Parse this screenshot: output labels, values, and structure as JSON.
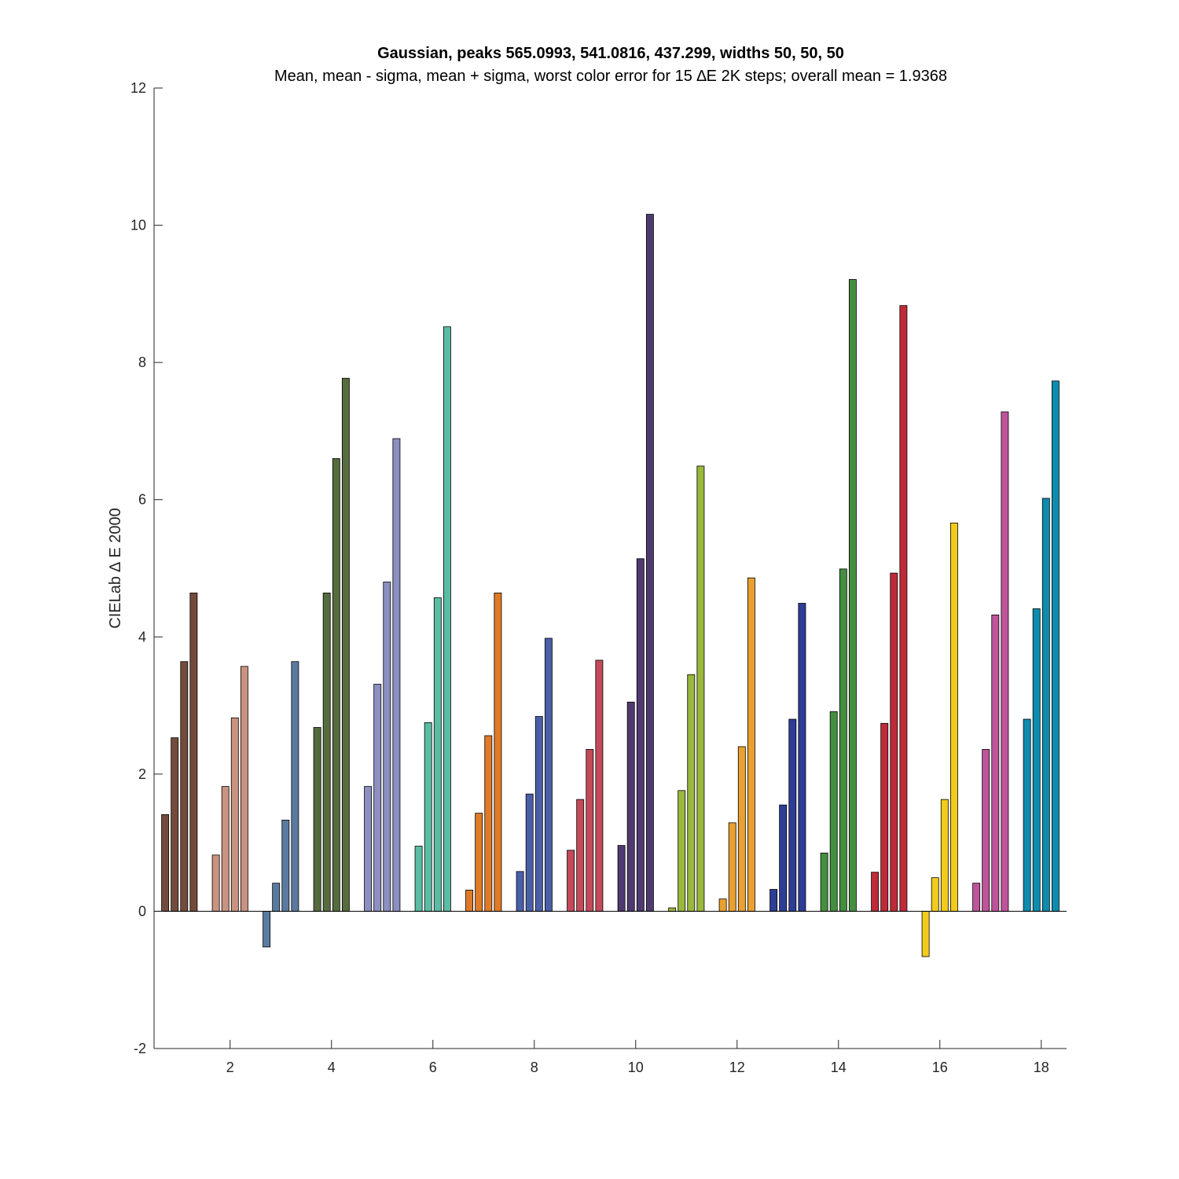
{
  "chart_data": {
    "type": "bar",
    "title": "Gaussian, peaks 565.0993, 541.0816, 437.299, widths 50, 50, 50",
    "subtitle": "Mean, mean - sigma, mean + sigma, worst color error for 15 ∆E 2K steps; overall mean = 1.9368",
    "xlabel": "",
    "ylabel": "CIELab ∆ E 2000",
    "xlim": [
      0.5,
      18.5
    ],
    "ylim": [
      -2,
      12
    ],
    "xticks": [
      "2",
      "4",
      "6",
      "8",
      "10",
      "12",
      "14",
      "16",
      "18"
    ],
    "yticks": [
      "-2",
      "0",
      "2",
      "4",
      "6",
      "8",
      "10",
      "12"
    ],
    "grid": false,
    "legend": "none",
    "categories": [
      1,
      2,
      3,
      4,
      5,
      6,
      7,
      8,
      9,
      10,
      11,
      12,
      13,
      14,
      15,
      16,
      17,
      18
    ],
    "series_labels": [
      "mean - sigma",
      "mean",
      "mean + sigma",
      "worst"
    ],
    "values": [
      [
        1.41,
        2.53,
        3.64,
        4.64
      ],
      [
        0.82,
        1.82,
        2.82,
        3.57
      ],
      [
        -0.52,
        0.41,
        1.33,
        3.64
      ],
      [
        2.68,
        4.64,
        6.6,
        7.77
      ],
      [
        1.82,
        3.31,
        4.8,
        6.89
      ],
      [
        0.95,
        2.75,
        4.57,
        8.52
      ],
      [
        0.31,
        1.43,
        2.56,
        4.64
      ],
      [
        0.58,
        1.71,
        2.84,
        3.98
      ],
      [
        0.89,
        1.63,
        2.36,
        3.66
      ],
      [
        0.96,
        3.05,
        5.14,
        10.16
      ],
      [
        0.05,
        1.76,
        3.45,
        6.49
      ],
      [
        0.18,
        1.29,
        2.4,
        4.86
      ],
      [
        0.32,
        1.55,
        2.8,
        4.49
      ],
      [
        0.85,
        2.91,
        4.99,
        9.21
      ],
      [
        0.57,
        2.74,
        4.93,
        8.83
      ],
      [
        -0.66,
        0.49,
        1.63,
        5.66
      ],
      [
        0.41,
        2.36,
        4.32,
        7.28
      ],
      [
        2.8,
        4.41,
        6.02,
        7.73
      ]
    ],
    "colors": [
      "#734b3c",
      "#c89380",
      "#5b7aa0",
      "#566c3e",
      "#8c8fc0",
      "#5bbca4",
      "#e07a28",
      "#4b5fa8",
      "#c44a5a",
      "#4f3a70",
      "#9ab83c",
      "#eaa030",
      "#2e3d96",
      "#448f3f",
      "#bf2a38",
      "#f2cb1c",
      "#be549a",
      "#0e8cae"
    ]
  }
}
